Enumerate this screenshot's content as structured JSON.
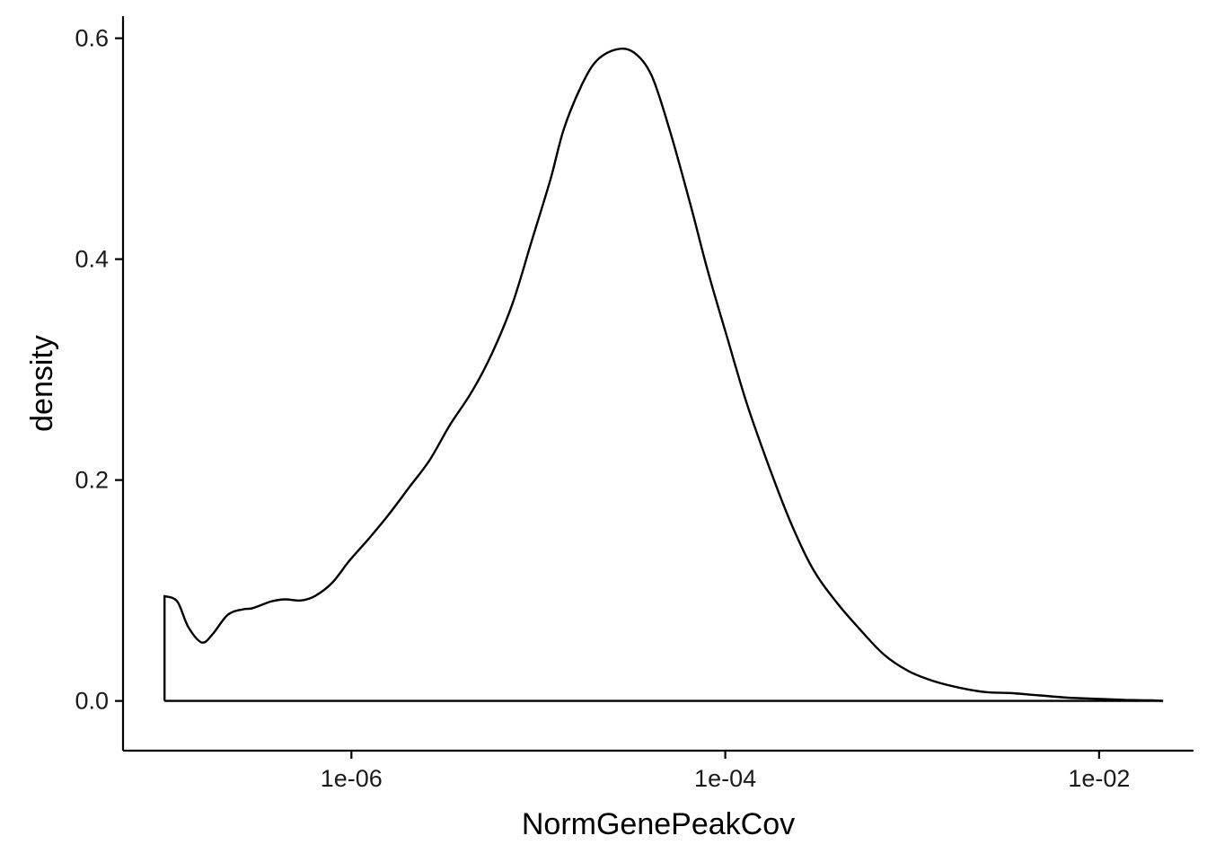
{
  "chart_data": {
    "type": "line",
    "xlabel": "NormGenePeakCov",
    "ylabel": "density",
    "x_scale": "log10",
    "xlim": [
      6e-08,
      0.032
    ],
    "ylim": [
      -0.045,
      0.62
    ],
    "x_ticks": [
      {
        "value": 1e-06,
        "label": "1e-06"
      },
      {
        "value": 0.0001,
        "label": "1e-04"
      },
      {
        "value": 0.01,
        "label": "1e-02"
      }
    ],
    "y_ticks": [
      {
        "value": 0.0,
        "label": "0.0"
      },
      {
        "value": 0.2,
        "label": "0.2"
      },
      {
        "value": 0.4,
        "label": "0.4"
      },
      {
        "value": 0.6,
        "label": "0.6"
      }
    ],
    "grid": false,
    "series": [
      {
        "x": [
          1e-07,
          1e-07,
          1.17e-07,
          1.34e-07,
          1.58e-07,
          1.8e-07,
          2.18e-07,
          2.63e-07,
          2.96e-07,
          3.71e-07,
          4.4e-07,
          5.37e-07,
          6.38e-07,
          7.89e-07,
          9.76e-07,
          1.24e-06,
          1.57e-06,
          2.03e-06,
          2.62e-06,
          3.37e-06,
          4.41e-06,
          5.66e-06,
          7.28e-06,
          9.16e-06,
          1.16e-05,
          1.37e-05,
          1.71e-05,
          2.06e-05,
          2.63e-05,
          3.25e-05,
          4.04e-05,
          5.08e-05,
          6.5e-05,
          8.04e-05,
          0.000102,
          0.00013,
          0.000169,
          0.000222,
          0.000293,
          0.000391,
          0.000524,
          0.000706,
          0.000956,
          0.0013,
          0.00179,
          0.00248,
          0.00345,
          0.00482,
          0.00678,
          0.00956,
          0.0135,
          0.0192,
          0.022
        ],
        "y": [
          0.0,
          0.095,
          0.09,
          0.067,
          0.053,
          0.06,
          0.078,
          0.083,
          0.084,
          0.09,
          0.092,
          0.091,
          0.095,
          0.107,
          0.127,
          0.147,
          0.168,
          0.193,
          0.218,
          0.25,
          0.28,
          0.315,
          0.36,
          0.415,
          0.472,
          0.518,
          0.558,
          0.58,
          0.59,
          0.587,
          0.566,
          0.515,
          0.45,
          0.39,
          0.33,
          0.27,
          0.215,
          0.163,
          0.12,
          0.09,
          0.065,
          0.042,
          0.027,
          0.018,
          0.012,
          0.008,
          0.007,
          0.005,
          0.003,
          0.002,
          0.001,
          0.0005,
          0.0
        ]
      }
    ]
  }
}
